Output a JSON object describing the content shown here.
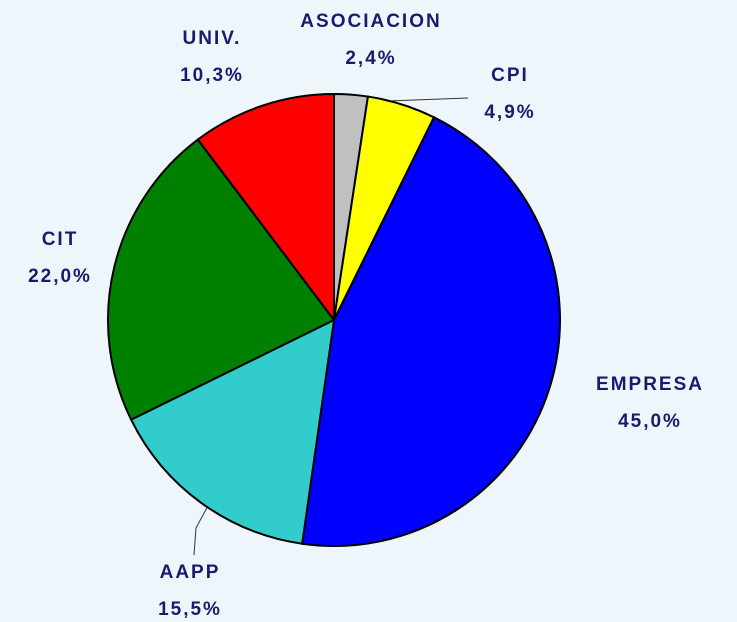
{
  "chart_data": {
    "type": "pie",
    "categories": [
      "ASOCIACION",
      "CPI",
      "EMPRESA",
      "AAPP",
      "CIT",
      "UNIV."
    ],
    "values": [
      2.4,
      4.9,
      45.0,
      15.5,
      22.0,
      10.3
    ],
    "value_labels": [
      "2,4%",
      "4,9%",
      "45,0%",
      "15,5%",
      "22,0%",
      "10,3%"
    ],
    "colors": [
      "#c0c0c0",
      "#ffff00",
      "#0000ff",
      "#33cccc",
      "#008000",
      "#ff0000"
    ]
  }
}
